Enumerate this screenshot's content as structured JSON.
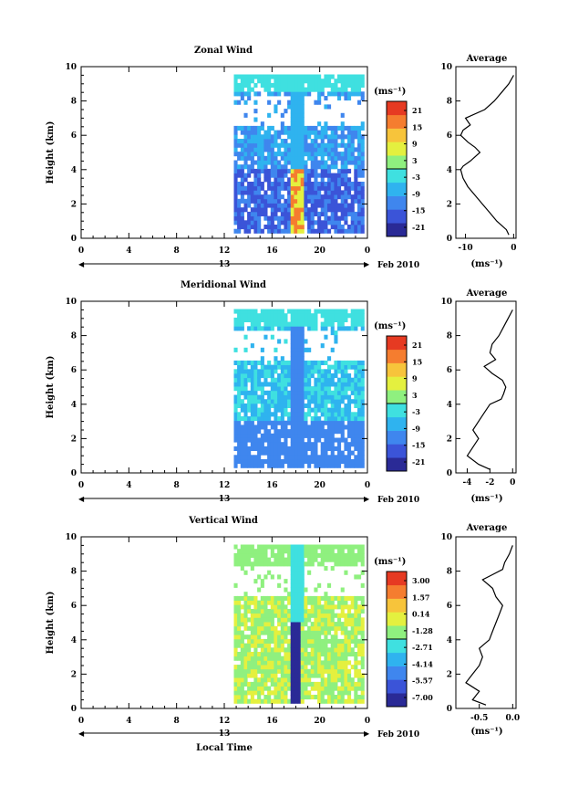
{
  "chart_data": [
    {
      "type": "heatmap",
      "title": "Zonal Wind",
      "ylabel": "Height (km)",
      "xlabel": "",
      "date_label": "Feb 2010",
      "day_label": "13",
      "x_ticks": [
        "0",
        "4",
        "8",
        "12",
        "16",
        "20",
        "0"
      ],
      "y_ticks": [
        "0",
        "2",
        "4",
        "6",
        "8",
        "10"
      ],
      "xlim": [
        0,
        24
      ],
      "ylim": [
        0,
        10
      ],
      "colorbar": {
        "unit": "(ms⁻¹)",
        "labels": [
          "21",
          "15",
          "9",
          "3",
          "-3",
          "-9",
          "-15",
          "-21"
        ],
        "colors": [
          "#2a2a96",
          "#3b54d8",
          "#3f86ee",
          "#2fb3ef",
          "#3fe0e0",
          "#8ff07f",
          "#e4f03f",
          "#f7c43b",
          "#f57d2f",
          "#e63a22"
        ]
      },
      "data_region": {
        "t_start": 12.8,
        "t_end": 23.5,
        "h_start": 0.3,
        "h_end": 9.4
      },
      "profile": {
        "title": "Average",
        "xlabel": "(ms⁻¹)",
        "x_ticks": [
          "-10",
          "0"
        ],
        "xlim": [
          -12,
          0.5
        ],
        "heights": [
          0.2,
          0.5,
          1.0,
          1.5,
          2.0,
          2.5,
          3.0,
          3.5,
          4.0,
          4.2,
          4.5,
          5.0,
          5.3,
          5.6,
          6.0,
          6.3,
          6.6,
          7.0,
          7.5,
          8.0,
          8.5,
          9.0,
          9.5
        ],
        "values": [
          -1.0,
          -1.5,
          -3.5,
          -5.0,
          -6.5,
          -8.0,
          -9.5,
          -10.5,
          -11.0,
          -10.5,
          -9.0,
          -7.0,
          -8.0,
          -9.5,
          -11.0,
          -10.5,
          -9.0,
          -10.0,
          -6.0,
          -4.0,
          -2.5,
          -1.0,
          0.0
        ]
      }
    },
    {
      "type": "heatmap",
      "title": "Meridional Wind",
      "ylabel": "Height (km)",
      "xlabel": "",
      "date_label": "Feb 2010",
      "day_label": "13",
      "x_ticks": [
        "0",
        "4",
        "8",
        "12",
        "16",
        "20",
        "0"
      ],
      "y_ticks": [
        "0",
        "2",
        "4",
        "6",
        "8",
        "10"
      ],
      "xlim": [
        0,
        24
      ],
      "ylim": [
        0,
        10
      ],
      "colorbar": {
        "unit": "(ms⁻¹)",
        "labels": [
          "21",
          "15",
          "9",
          "3",
          "-3",
          "-9",
          "-15",
          "-21"
        ],
        "colors": [
          "#2a2a96",
          "#3b54d8",
          "#3f86ee",
          "#2fb3ef",
          "#3fe0e0",
          "#8ff07f",
          "#e4f03f",
          "#f7c43b",
          "#f57d2f",
          "#e63a22"
        ]
      },
      "data_region": {
        "t_start": 12.8,
        "t_end": 23.5,
        "h_start": 0.3,
        "h_end": 9.4
      },
      "profile": {
        "title": "Average",
        "xlabel": "(ms⁻¹)",
        "x_ticks": [
          "-4",
          "-2",
          "0"
        ],
        "xlim": [
          -5,
          0.3
        ],
        "heights": [
          0.2,
          0.5,
          1.0,
          1.5,
          2.0,
          2.5,
          3.0,
          3.5,
          4.0,
          4.3,
          4.6,
          5.0,
          5.4,
          5.8,
          6.2,
          6.6,
          7.0,
          7.5,
          8.0,
          8.5,
          9.0,
          9.5
        ],
        "values": [
          -2.0,
          -3.0,
          -4.0,
          -3.5,
          -3.0,
          -3.5,
          -3.0,
          -2.5,
          -2.0,
          -1.0,
          -0.8,
          -0.6,
          -0.9,
          -1.8,
          -2.5,
          -1.5,
          -2.0,
          -1.8,
          -1.2,
          -0.8,
          -0.4,
          0.0
        ]
      }
    },
    {
      "type": "heatmap",
      "title": "Vertical Wind",
      "ylabel": "Height (km)",
      "xlabel": "Local Time",
      "date_label": "Feb 2010",
      "day_label": "13",
      "x_ticks": [
        "0",
        "4",
        "8",
        "12",
        "16",
        "20",
        "0"
      ],
      "y_ticks": [
        "0",
        "2",
        "4",
        "6",
        "8",
        "10"
      ],
      "xlim": [
        0,
        24
      ],
      "ylim": [
        0,
        10
      ],
      "colorbar": {
        "unit": "(ms⁻¹)",
        "labels": [
          "3.00",
          "1.57",
          "0.14",
          "-1.28",
          "-2.71",
          "-4.14",
          "-5.57",
          "-7.00"
        ],
        "colors": [
          "#2a2a96",
          "#3b54d8",
          "#3f86ee",
          "#2fb3ef",
          "#3fe0e0",
          "#8ff07f",
          "#e4f03f",
          "#f7c43b",
          "#f57d2f",
          "#e63a22"
        ]
      },
      "data_region": {
        "t_start": 12.8,
        "t_end": 23.5,
        "h_start": 0.3,
        "h_end": 9.4
      },
      "profile": {
        "title": "Average",
        "xlabel": "(ms⁻¹)",
        "x_ticks": [
          "-0.5",
          "0.0"
        ],
        "xlim": [
          -0.85,
          0.05
        ],
        "heights": [
          0.2,
          0.5,
          1.0,
          1.5,
          2.0,
          2.5,
          3.0,
          3.5,
          4.0,
          4.5,
          5.0,
          5.5,
          6.0,
          6.5,
          7.0,
          7.5,
          7.8,
          8.1,
          8.5,
          9.0,
          9.5
        ],
        "values": [
          -0.4,
          -0.6,
          -0.5,
          -0.7,
          -0.6,
          -0.5,
          -0.45,
          -0.5,
          -0.35,
          -0.3,
          -0.25,
          -0.2,
          -0.15,
          -0.25,
          -0.3,
          -0.45,
          -0.3,
          -0.15,
          -0.12,
          -0.05,
          0.0
        ]
      }
    }
  ]
}
